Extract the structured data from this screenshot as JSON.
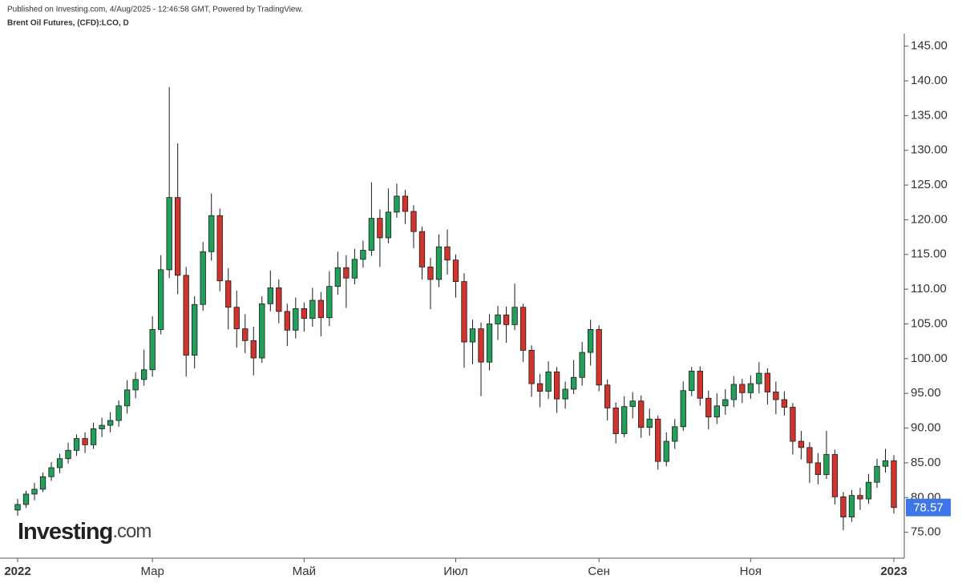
{
  "header": {
    "published": "Published on Investing.com, 4/Aug/2025 - 12:46:58 GMT, Powered by TradingView.",
    "instrument": "Brent Oil Futures, (CFD):LCO, D"
  },
  "logo": {
    "name": "Investing",
    "suffix": ".com"
  },
  "chart_data": {
    "type": "candlestick",
    "up_color": "#22a05a",
    "down_color": "#d0342c",
    "outline_color": "#1a1a1a",
    "last_price": 78.57,
    "last_price_color": "#3d76e6",
    "ylim": [
      71.5,
      146.8
    ],
    "yticks": [
      {
        "value": 75,
        "label": "75.00"
      },
      {
        "value": 80,
        "label": "80.00"
      },
      {
        "value": 85,
        "label": "85.00"
      },
      {
        "value": 90,
        "label": "90.00"
      },
      {
        "value": 95,
        "label": "95.00"
      },
      {
        "value": 100,
        "label": "100.00"
      },
      {
        "value": 105,
        "label": "105.00"
      },
      {
        "value": 110,
        "label": "110.00"
      },
      {
        "value": 115,
        "label": "115.00"
      },
      {
        "value": 120,
        "label": "120.00"
      },
      {
        "value": 125,
        "label": "125.00"
      },
      {
        "value": 130,
        "label": "130.00"
      },
      {
        "value": 135,
        "label": "135.00"
      },
      {
        "value": 140,
        "label": "140.00"
      },
      {
        "value": 145,
        "label": "145.00"
      }
    ],
    "categories": [
      "2022",
      null,
      null,
      null,
      null,
      null,
      null,
      null,
      null,
      null,
      null,
      null,
      null,
      null,
      null,
      null,
      "Мар",
      null,
      null,
      null,
      null,
      null,
      null,
      null,
      null,
      null,
      null,
      null,
      null,
      null,
      null,
      null,
      null,
      null,
      "Май",
      null,
      null,
      null,
      null,
      null,
      null,
      null,
      null,
      null,
      null,
      null,
      null,
      null,
      null,
      null,
      null,
      null,
      "Июл",
      null,
      null,
      null,
      null,
      null,
      null,
      null,
      null,
      null,
      null,
      null,
      null,
      null,
      null,
      null,
      null,
      "Сен",
      null,
      null,
      null,
      null,
      null,
      null,
      null,
      null,
      null,
      null,
      null,
      null,
      null,
      null,
      null,
      null,
      null,
      "Ноя",
      null,
      null,
      null,
      null,
      null,
      null,
      null,
      null,
      null,
      null,
      null,
      null,
      null,
      null,
      null,
      null,
      "2023"
    ],
    "open": [
      78.2,
      79.0,
      80.5,
      81.2,
      83.0,
      84.3,
      85.6,
      86.8,
      88.5,
      87.6,
      89.9,
      90.4,
      91.1,
      93.2,
      95.5,
      97.0,
      98.4,
      104.2,
      112.8,
      123.2,
      112.0,
      100.5,
      107.8,
      115.4,
      120.6,
      111.2,
      107.4,
      104.3,
      102.6,
      100.1,
      107.9,
      110.2,
      106.8,
      104.1,
      107.2,
      105.8,
      108.4,
      105.9,
      110.4,
      113.1,
      111.6,
      114.3,
      115.6,
      120.2,
      117.4,
      121.1,
      123.4,
      121.2,
      118.3,
      113.2,
      111.4,
      116.1,
      114.2,
      111.1,
      102.4,
      104.3,
      99.5,
      105.0,
      106.3,
      104.9,
      107.4,
      101.2,
      96.4,
      95.3,
      98.1,
      94.2,
      95.6,
      97.3,
      100.9,
      104.2,
      96.2,
      92.9,
      89.2,
      93.1,
      93.9,
      90.1,
      91.3,
      85.2,
      88.1,
      90.2,
      95.4,
      98.2,
      94.3,
      91.6,
      93.2,
      94.1,
      96.3,
      95.1,
      96.4,
      97.9,
      95.2,
      94.1,
      93.0,
      88.1,
      87.2,
      85.0,
      83.3,
      86.2,
      80.1,
      77.2,
      80.3,
      79.8,
      82.2,
      84.5,
      85.3
    ],
    "high": [
      79.8,
      81.0,
      82.1,
      83.6,
      85.1,
      86.3,
      87.9,
      89.1,
      89.4,
      90.8,
      91.5,
      92.3,
      94.0,
      96.9,
      98.0,
      101.3,
      106.1,
      114.9,
      139.1,
      131.0,
      113.2,
      109.0,
      116.8,
      123.8,
      121.6,
      113.0,
      109.8,
      106.4,
      104.6,
      109.0,
      112.7,
      111.4,
      107.9,
      108.8,
      108.1,
      110.2,
      109.6,
      112.6,
      115.4,
      114.9,
      115.8,
      117.0,
      125.4,
      121.5,
      124.5,
      125.2,
      124.3,
      122.1,
      119.0,
      114.5,
      117.9,
      118.6,
      115.0,
      112.3,
      105.6,
      105.2,
      106.4,
      107.6,
      107.5,
      110.8,
      107.9,
      101.9,
      97.8,
      99.6,
      98.8,
      96.7,
      99.8,
      102.4,
      105.6,
      104.8,
      97.0,
      93.7,
      94.6,
      95.2,
      94.7,
      92.8,
      91.8,
      89.4,
      91.3,
      96.7,
      98.8,
      98.9,
      95.4,
      95.0,
      95.6,
      97.5,
      97.1,
      97.6,
      99.5,
      98.6,
      96.7,
      95.3,
      93.6,
      89.6,
      88.0,
      86.4,
      89.6,
      86.9,
      80.8,
      81.1,
      81.4,
      83.4,
      85.6,
      87.0,
      86.1
    ],
    "low": [
      77.4,
      78.5,
      79.6,
      80.8,
      82.4,
      83.5,
      84.9,
      86.0,
      86.4,
      87.0,
      88.7,
      89.4,
      90.2,
      92.1,
      94.3,
      96.1,
      97.4,
      103.5,
      111.6,
      109.3,
      97.4,
      98.6,
      106.9,
      114.1,
      109.7,
      104.2,
      101.6,
      100.8,
      97.6,
      99.4,
      106.8,
      105.1,
      101.8,
      102.9,
      103.9,
      104.6,
      103.2,
      104.7,
      109.2,
      107.3,
      110.7,
      113.1,
      114.8,
      113.2,
      116.6,
      120.3,
      119.4,
      115.9,
      111.4,
      107.1,
      110.3,
      112.1,
      108.8,
      98.7,
      99.2,
      94.6,
      98.3,
      102.7,
      102.3,
      104.1,
      99.5,
      94.5,
      93.0,
      94.2,
      92.2,
      92.8,
      94.9,
      96.1,
      99.0,
      95.3,
      91.1,
      87.8,
      88.7,
      91.4,
      88.6,
      88.9,
      84.0,
      84.5,
      87.0,
      89.6,
      94.6,
      93.2,
      89.8,
      90.6,
      91.9,
      93.0,
      93.6,
      94.2,
      95.0,
      93.4,
      92.0,
      91.8,
      86.2,
      85.5,
      82.1,
      81.9,
      82.7,
      79.0,
      75.3,
      76.5,
      78.2,
      79.1,
      81.4,
      83.6,
      77.7
    ],
    "close": [
      79.0,
      80.5,
      81.2,
      83.0,
      84.3,
      85.6,
      86.8,
      88.5,
      87.6,
      89.9,
      90.4,
      91.1,
      93.2,
      95.5,
      97.0,
      98.4,
      104.2,
      112.8,
      123.2,
      112.0,
      100.5,
      107.8,
      115.4,
      120.6,
      111.2,
      107.4,
      104.3,
      102.6,
      100.1,
      107.9,
      110.2,
      106.8,
      104.1,
      107.2,
      105.8,
      108.4,
      105.9,
      110.4,
      113.1,
      111.6,
      114.3,
      115.6,
      120.2,
      117.4,
      121.1,
      123.4,
      121.2,
      118.3,
      113.2,
      111.4,
      116.1,
      114.2,
      111.1,
      102.4,
      104.3,
      99.5,
      105.0,
      106.3,
      104.9,
      107.4,
      101.2,
      96.4,
      95.3,
      98.1,
      94.2,
      95.6,
      97.3,
      100.9,
      104.2,
      96.2,
      92.9,
      89.2,
      93.1,
      93.9,
      90.1,
      91.3,
      85.2,
      88.1,
      90.2,
      95.4,
      98.2,
      94.3,
      91.6,
      93.2,
      94.1,
      96.3,
      95.1,
      96.4,
      97.9,
      95.2,
      94.1,
      93.0,
      88.1,
      87.2,
      85.0,
      83.3,
      86.2,
      80.1,
      77.2,
      80.3,
      79.8,
      82.2,
      84.5,
      85.3,
      78.57
    ]
  }
}
